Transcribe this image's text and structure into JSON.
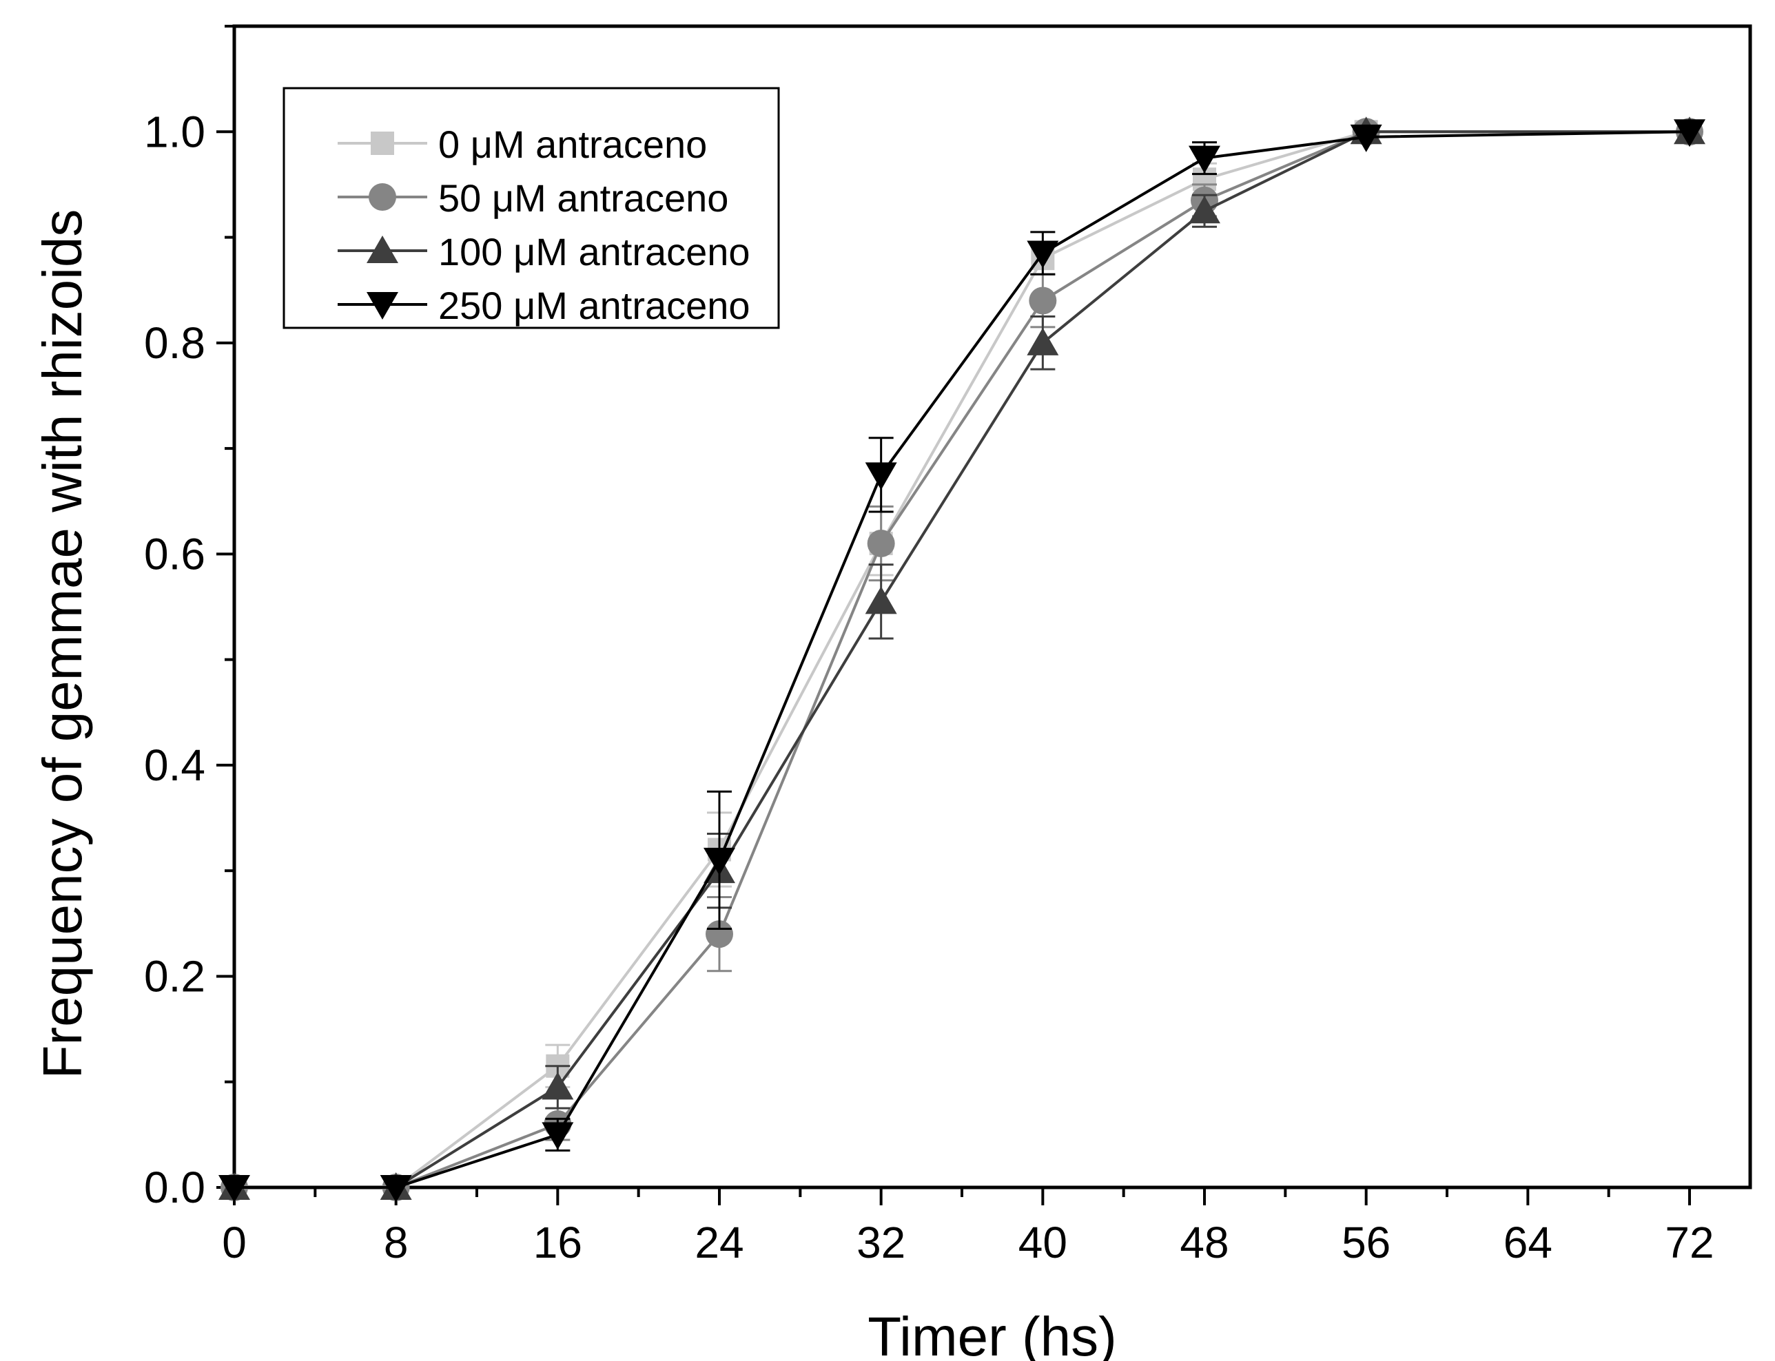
{
  "chart_data": {
    "type": "line",
    "title": "",
    "xlabel": "Timer (hs)",
    "ylabel": "Frequency of gemmae with rhizoids",
    "xlim": [
      0,
      75
    ],
    "ylim": [
      0,
      1.1
    ],
    "xticks": [
      0,
      8,
      16,
      24,
      32,
      40,
      48,
      56,
      64,
      72
    ],
    "yticks": [
      0.0,
      0.2,
      0.4,
      0.6,
      0.8,
      1.0
    ],
    "xtick_labels": [
      "0",
      "8",
      "16",
      "24",
      "32",
      "40",
      "48",
      "56",
      "64",
      "72"
    ],
    "ytick_labels": [
      "0.0",
      "0.2",
      "0.4",
      "0.6",
      "0.8",
      "1.0"
    ],
    "legend_position": "top-left",
    "x": [
      0,
      8,
      16,
      24,
      32,
      40,
      48,
      56,
      72
    ],
    "series": [
      {
        "name": "0 μM antraceno",
        "marker": "square",
        "color": "#c8c8c8",
        "values": [
          0.0,
          0.0,
          0.115,
          0.32,
          0.61,
          0.88,
          0.955,
          1.0,
          1.0
        ],
        "errors": [
          0.0,
          0.0,
          0.02,
          0.035,
          0.03,
          0.015,
          0.015,
          0.0,
          0.0
        ]
      },
      {
        "name": "50 μM antraceno",
        "marker": "circle",
        "color": "#858585",
        "values": [
          0.0,
          0.0,
          0.06,
          0.24,
          0.61,
          0.84,
          0.935,
          1.0,
          1.0
        ],
        "errors": [
          0.0,
          0.0,
          0.015,
          0.035,
          0.035,
          0.025,
          0.015,
          0.0,
          0.0
        ]
      },
      {
        "name": "100 μM antraceno",
        "marker": "triangle-up",
        "color": "#3e3e3e",
        "values": [
          0.0,
          0.0,
          0.095,
          0.3,
          0.555,
          0.8,
          0.925,
          1.0,
          1.0
        ],
        "errors": [
          0.0,
          0.0,
          0.02,
          0.035,
          0.035,
          0.025,
          0.015,
          0.0,
          0.0
        ]
      },
      {
        "name": "250 μM antraceno",
        "marker": "triangle-down",
        "color": "#000000",
        "values": [
          0.0,
          0.0,
          0.05,
          0.31,
          0.675,
          0.885,
          0.975,
          0.995,
          1.0
        ],
        "errors": [
          0.0,
          0.0,
          0.015,
          0.065,
          0.035,
          0.02,
          0.015,
          0.0,
          0.0
        ]
      }
    ]
  }
}
